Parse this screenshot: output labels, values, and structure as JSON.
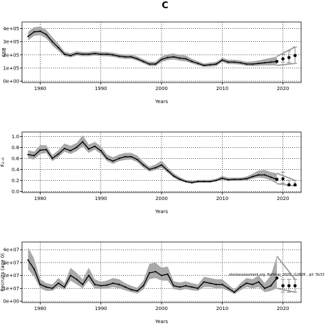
{
  "figure_title": "C",
  "chart_data": [
    {
      "type": "line",
      "panel": "SSB",
      "xlabel": "Years",
      "ylabel": "SSB",
      "xlim": [
        1977,
        2023
      ],
      "ylim": [
        -10000,
        450000
      ],
      "xticks": [
        1980,
        1990,
        2000,
        2010,
        2020
      ],
      "xtick_labels": [
        "1980",
        "1990",
        "2000",
        "2010",
        "2020"
      ],
      "yticks": [
        0,
        100000,
        200000,
        300000,
        400000
      ],
      "ytick_labels": [
        "0e+00",
        "1e+05",
        "2e+05",
        "3e+05",
        "4e+05"
      ],
      "grid": true,
      "grid_style": "dotted",
      "series": [
        {
          "x": [
            1978,
            1979,
            1980,
            1981,
            1982,
            1983,
            1984,
            1985,
            1986,
            1987,
            1988,
            1989,
            1990,
            1991,
            1992,
            1993,
            1994,
            1995,
            1996,
            1997,
            1998,
            1999,
            2000,
            2001,
            2002,
            2003,
            2004,
            2005,
            2006,
            2007,
            2008,
            2009,
            2010,
            2011,
            2012,
            2013,
            2014,
            2015,
            2016,
            2017,
            2018,
            2019
          ],
          "y": [
            340000,
            375000,
            380000,
            355000,
            300000,
            255000,
            205000,
            195000,
            210000,
            205000,
            205000,
            210000,
            205000,
            205000,
            200000,
            190000,
            185000,
            185000,
            170000,
            150000,
            130000,
            130000,
            165000,
            180000,
            185000,
            175000,
            170000,
            150000,
            135000,
            120000,
            125000,
            130000,
            160000,
            145000,
            145000,
            140000,
            130000,
            130000,
            135000,
            140000,
            145000,
            150000
          ],
          "lower": [
            310000,
            345000,
            350000,
            325000,
            270000,
            230000,
            190000,
            180000,
            195000,
            190000,
            190000,
            195000,
            190000,
            190000,
            185000,
            175000,
            170000,
            170000,
            155000,
            135000,
            115000,
            115000,
            145000,
            160000,
            165000,
            155000,
            150000,
            135000,
            120000,
            108000,
            110000,
            115000,
            145000,
            130000,
            130000,
            125000,
            117000,
            115000,
            118000,
            120000,
            120000,
            120000
          ],
          "upper": [
            375000,
            410000,
            415000,
            390000,
            335000,
            285000,
            225000,
            212000,
            228000,
            222000,
            222000,
            228000,
            222000,
            222000,
            217000,
            207000,
            203000,
            203000,
            188000,
            167000,
            148000,
            148000,
            188000,
            205000,
            210000,
            200000,
            195000,
            170000,
            152000,
            135000,
            141000,
            147000,
            178000,
            163000,
            163000,
            158000,
            148000,
            150000,
            158000,
            168000,
            177000,
            188000
          ],
          "projection": {
            "x": [
              2020,
              2021,
              2022
            ],
            "y": [
              170000,
              180000,
              195000
            ],
            "lower": [
              145000,
              140000,
              135000
            ],
            "upper": [
              205000,
              230000,
              260000
            ]
          },
          "projection_start": 2019
        }
      ]
    },
    {
      "type": "line",
      "panel": "F",
      "xlabel": "Years",
      "ylabel": "F₂₋₆",
      "xlim": [
        1977,
        2023
      ],
      "ylim": [
        -0.02,
        1.08
      ],
      "xticks": [
        1980,
        1990,
        2000,
        2010,
        2020
      ],
      "xtick_labels": [
        "1980",
        "1990",
        "2000",
        "2010",
        "2020"
      ],
      "yticks": [
        0,
        0.2,
        0.4,
        0.6,
        0.8,
        1.0
      ],
      "ytick_labels": [
        "0.0",
        "0.2",
        "0.4",
        "0.6",
        "0.8",
        "1.0"
      ],
      "grid": true,
      "grid_style": "dotted",
      "series": [
        {
          "x": [
            1978,
            1979,
            1980,
            1981,
            1982,
            1983,
            1984,
            1985,
            1986,
            1987,
            1988,
            1989,
            1990,
            1991,
            1992,
            1993,
            1994,
            1995,
            1996,
            1997,
            1998,
            1999,
            2000,
            2001,
            2002,
            2003,
            2004,
            2005,
            2006,
            2007,
            2008,
            2009,
            2010,
            2011,
            2012,
            2013,
            2014,
            2015,
            2016,
            2017,
            2018,
            2019
          ],
          "y": [
            0.67,
            0.65,
            0.75,
            0.76,
            0.6,
            0.68,
            0.78,
            0.74,
            0.8,
            0.9,
            0.77,
            0.82,
            0.74,
            0.6,
            0.55,
            0.6,
            0.63,
            0.63,
            0.58,
            0.48,
            0.4,
            0.43,
            0.48,
            0.38,
            0.28,
            0.22,
            0.18,
            0.16,
            0.18,
            0.18,
            0.18,
            0.2,
            0.24,
            0.21,
            0.22,
            0.22,
            0.23,
            0.27,
            0.3,
            0.3,
            0.26,
            0.22
          ],
          "lower": [
            0.6,
            0.58,
            0.68,
            0.7,
            0.55,
            0.62,
            0.72,
            0.68,
            0.73,
            0.82,
            0.7,
            0.76,
            0.68,
            0.55,
            0.5,
            0.55,
            0.57,
            0.58,
            0.53,
            0.43,
            0.36,
            0.39,
            0.43,
            0.34,
            0.25,
            0.19,
            0.16,
            0.14,
            0.16,
            0.16,
            0.16,
            0.18,
            0.21,
            0.19,
            0.19,
            0.19,
            0.2,
            0.23,
            0.25,
            0.24,
            0.2,
            0.14
          ],
          "upper": [
            0.75,
            0.72,
            0.84,
            0.84,
            0.66,
            0.75,
            0.87,
            0.83,
            0.88,
            1.02,
            0.85,
            0.9,
            0.82,
            0.67,
            0.62,
            0.67,
            0.7,
            0.7,
            0.65,
            0.54,
            0.45,
            0.49,
            0.56,
            0.44,
            0.33,
            0.26,
            0.21,
            0.19,
            0.21,
            0.21,
            0.21,
            0.23,
            0.28,
            0.25,
            0.25,
            0.25,
            0.27,
            0.32,
            0.38,
            0.39,
            0.35,
            0.33
          ],
          "projection": {
            "x": [
              2020,
              2021,
              2022
            ],
            "y": [
              0.23,
              0.12,
              0.12
            ],
            "lower": [
              0.15,
              0.1,
              0.1
            ],
            "upper": [
              0.35,
              0.2,
              0.2
            ]
          },
          "projection_start": 2019
        }
      ]
    },
    {
      "type": "line",
      "panel": "Recruitment",
      "xlabel": "Years",
      "ylabel": "Recruits (age 0)",
      "xlim": [
        1977,
        2023
      ],
      "ylim": [
        -1000000,
        46000000
      ],
      "xticks": [
        1980,
        1990,
        2000,
        2010,
        2020
      ],
      "xtick_labels": [
        "1980",
        "1990",
        "2000",
        "2010",
        "2020"
      ],
      "yticks": [
        0,
        10000000,
        20000000,
        30000000,
        40000000
      ],
      "ytick_labels": [
        "0e+00",
        "1e+07",
        "2e+07",
        "3e+07",
        "4e+07"
      ],
      "grid": true,
      "grid_style": "dotted",
      "annotations": [
        "stockassessment.org, Baltimp_2020, r12626 , git: 5b33"
      ],
      "series": [
        {
          "x": [
            1978,
            1979,
            1980,
            1981,
            1982,
            1983,
            1984,
            1985,
            1986,
            1987,
            1988,
            1989,
            1990,
            1991,
            1992,
            1993,
            1994,
            1995,
            1996,
            1997,
            1998,
            1999,
            2000,
            2001,
            2002,
            2003,
            2004,
            2005,
            2006,
            2007,
            2008,
            2009,
            2010,
            2011,
            2012,
            2013,
            2014,
            2015,
            2016,
            2017,
            2018,
            2019
          ],
          "y": [
            32000000,
            25000000,
            13000000,
            11000000,
            10000000,
            14000000,
            11000000,
            20000000,
            17000000,
            13000000,
            20000000,
            13000000,
            12000000,
            12500000,
            14000000,
            13000000,
            11000000,
            9000000,
            8000000,
            12000000,
            22000000,
            23000000,
            20000000,
            21000000,
            12000000,
            11000000,
            12000000,
            11000000,
            10000000,
            15000000,
            14000000,
            13000000,
            13000000,
            10000000,
            7000000,
            11000000,
            14000000,
            13000000,
            15000000,
            10000000,
            12000000,
            18000000
          ],
          "lower": [
            25000000,
            19000000,
            10000000,
            8000000,
            8000000,
            11000000,
            9000000,
            16000000,
            13000000,
            10000000,
            16000000,
            10000000,
            9500000,
            10000000,
            11000000,
            10000000,
            8500000,
            7000000,
            6000000,
            9000000,
            17000000,
            18000000,
            16000000,
            16000000,
            9500000,
            8500000,
            9500000,
            8500000,
            8000000,
            11000000,
            11000000,
            10000000,
            10000000,
            8000000,
            5500000,
            8500000,
            11000000,
            10000000,
            11000000,
            7000000,
            8000000,
            10000000
          ],
          "upper": [
            42000000,
            33000000,
            17000000,
            14000000,
            13000000,
            18000000,
            14000000,
            26000000,
            22000000,
            17000000,
            26000000,
            17000000,
            15000000,
            16000000,
            18000000,
            17000000,
            14000000,
            12000000,
            10500000,
            16000000,
            29000000,
            30000000,
            26000000,
            27000000,
            15500000,
            14500000,
            15500000,
            14000000,
            13000000,
            19000000,
            18000000,
            17000000,
            17000000,
            13000000,
            9000000,
            14000000,
            18000000,
            17000000,
            20000000,
            14000000,
            20000000,
            35000000
          ],
          "projection": {
            "x": [
              2020,
              2021,
              2022
            ],
            "y": [
              12000000,
              12000000,
              12000000
            ],
            "lower": [
              7000000,
              7000000,
              7000000
            ],
            "upper": [
              17000000,
              17000000,
              17000000
            ]
          },
          "projection_start": 2019
        }
      ]
    }
  ]
}
